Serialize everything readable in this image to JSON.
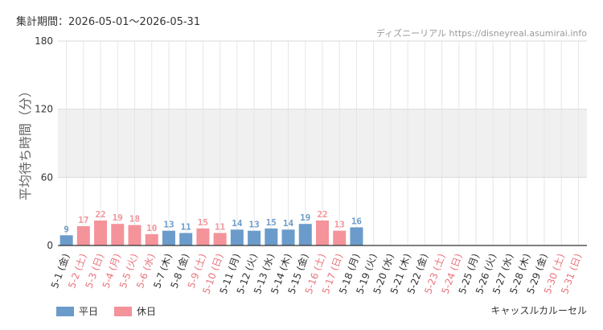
{
  "header": {
    "period_label": "集計期間：2026-05-01〜2026-05-31",
    "credit": "ディズニーリアル https://disneyreal.asumirai.info"
  },
  "footer": {
    "attraction": "キャッスルカルーセル"
  },
  "legend": {
    "weekday_label": "平日",
    "holiday_label": "休日"
  },
  "colors": {
    "weekday": "#6b9bca",
    "holiday": "#f4939a",
    "band": "#f0f0f0",
    "grid": "#e6e6e6"
  },
  "chart_data": {
    "type": "bar",
    "ylabel": "平均待ち時間（分）",
    "ylim": [
      0,
      180
    ],
    "yticks": [
      0,
      60,
      120,
      180
    ],
    "band": [
      60,
      120
    ],
    "categories": [
      "5-1 (金)",
      "5-2 (土)",
      "5-3 (日)",
      "5-4 (月)",
      "5-5 (火)",
      "5-6 (水)",
      "5-7 (木)",
      "5-8 (金)",
      "5-9 (土)",
      "5-10 (日)",
      "5-11 (月)",
      "5-12 (火)",
      "5-13 (水)",
      "5-14 (木)",
      "5-15 (金)",
      "5-16 (土)",
      "5-17 (日)",
      "5-18 (月)",
      "5-19 (火)",
      "5-20 (水)",
      "5-21 (木)",
      "5-22 (金)",
      "5-23 (土)",
      "5-24 (日)",
      "5-25 (月)",
      "5-26 (火)",
      "5-27 (水)",
      "5-28 (木)",
      "5-29 (金)",
      "5-30 (土)",
      "5-31 (日)"
    ],
    "values": [
      9,
      17,
      22,
      19,
      18,
      10,
      13,
      11,
      15,
      11,
      14,
      13,
      15,
      14,
      19,
      22,
      13,
      16,
      null,
      null,
      null,
      null,
      null,
      null,
      null,
      null,
      null,
      null,
      null,
      null,
      null
    ],
    "day_type": [
      "weekday",
      "holiday",
      "holiday",
      "holiday",
      "holiday",
      "holiday",
      "weekday",
      "weekday",
      "holiday",
      "holiday",
      "weekday",
      "weekday",
      "weekday",
      "weekday",
      "weekday",
      "holiday",
      "holiday",
      "weekday",
      "weekday",
      "weekday",
      "weekday",
      "weekday",
      "holiday",
      "holiday",
      "weekday",
      "weekday",
      "weekday",
      "weekday",
      "weekday",
      "holiday",
      "holiday"
    ]
  }
}
